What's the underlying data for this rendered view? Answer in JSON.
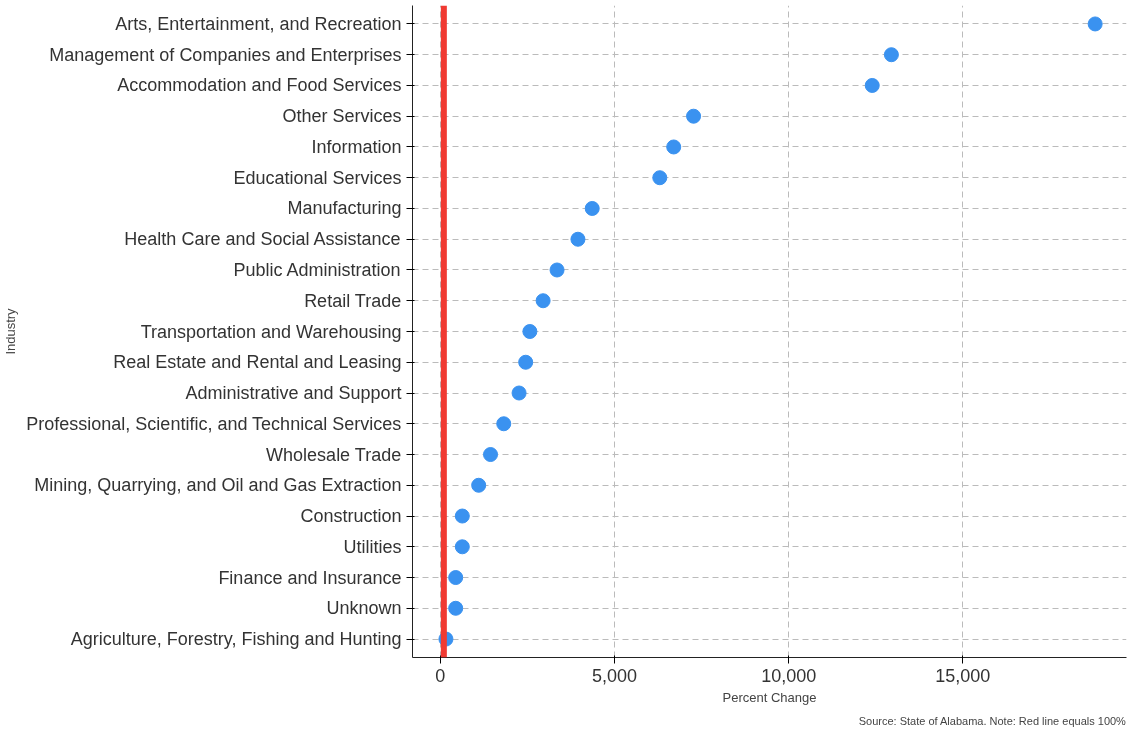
{
  "chart_data": {
    "type": "scatter",
    "orientation": "horizontal",
    "xlabel": "Percent Change",
    "ylabel": "Industry",
    "categories": [
      "Arts, Entertainment, and Recreation",
      "Management of Companies and Enterprises",
      "Accommodation and Food Services",
      "Other Services",
      "Information",
      "Educational Services",
      "Manufacturing",
      "Health Care and Social Assistance",
      "Public Administration",
      "Retail Trade",
      "Transportation and Warehousing",
      "Real Estate and Rental and Leasing",
      "Administrative and Support",
      "Professional, Scientific, and Technical Services",
      "Wholesale Trade",
      "Mining, Quarrying, and Oil and Gas Extraction",
      "Construction",
      "Utilities",
      "Finance and Insurance",
      "Unknown",
      "Agriculture, Forestry, Fishing and Hunting"
    ],
    "series": [
      {
        "color": "#3a92f0",
        "values": [
          18800,
          12950,
          12400,
          7270,
          6700,
          6300,
          4360,
          3950,
          3350,
          2950,
          2570,
          2450,
          2260,
          1820,
          1440,
          1100,
          630,
          630,
          440,
          440,
          160
        ]
      }
    ],
    "xlim": [
      -800,
      19700
    ],
    "xticks": [
      0,
      {
        "value": 5000,
        "label": "5,000"
      },
      {
        "value": 10000,
        "label": "10,000"
      },
      {
        "value": 15000,
        "label": "15,000"
      }
    ],
    "ref_lines": [
      {
        "axis": "x",
        "value": 100,
        "label": null,
        "color": "#f03a32"
      }
    ],
    "grid": true,
    "marker": "circle",
    "annotations": [
      "Source: State of Alabama. Note: Red line equals 100%"
    ]
  }
}
